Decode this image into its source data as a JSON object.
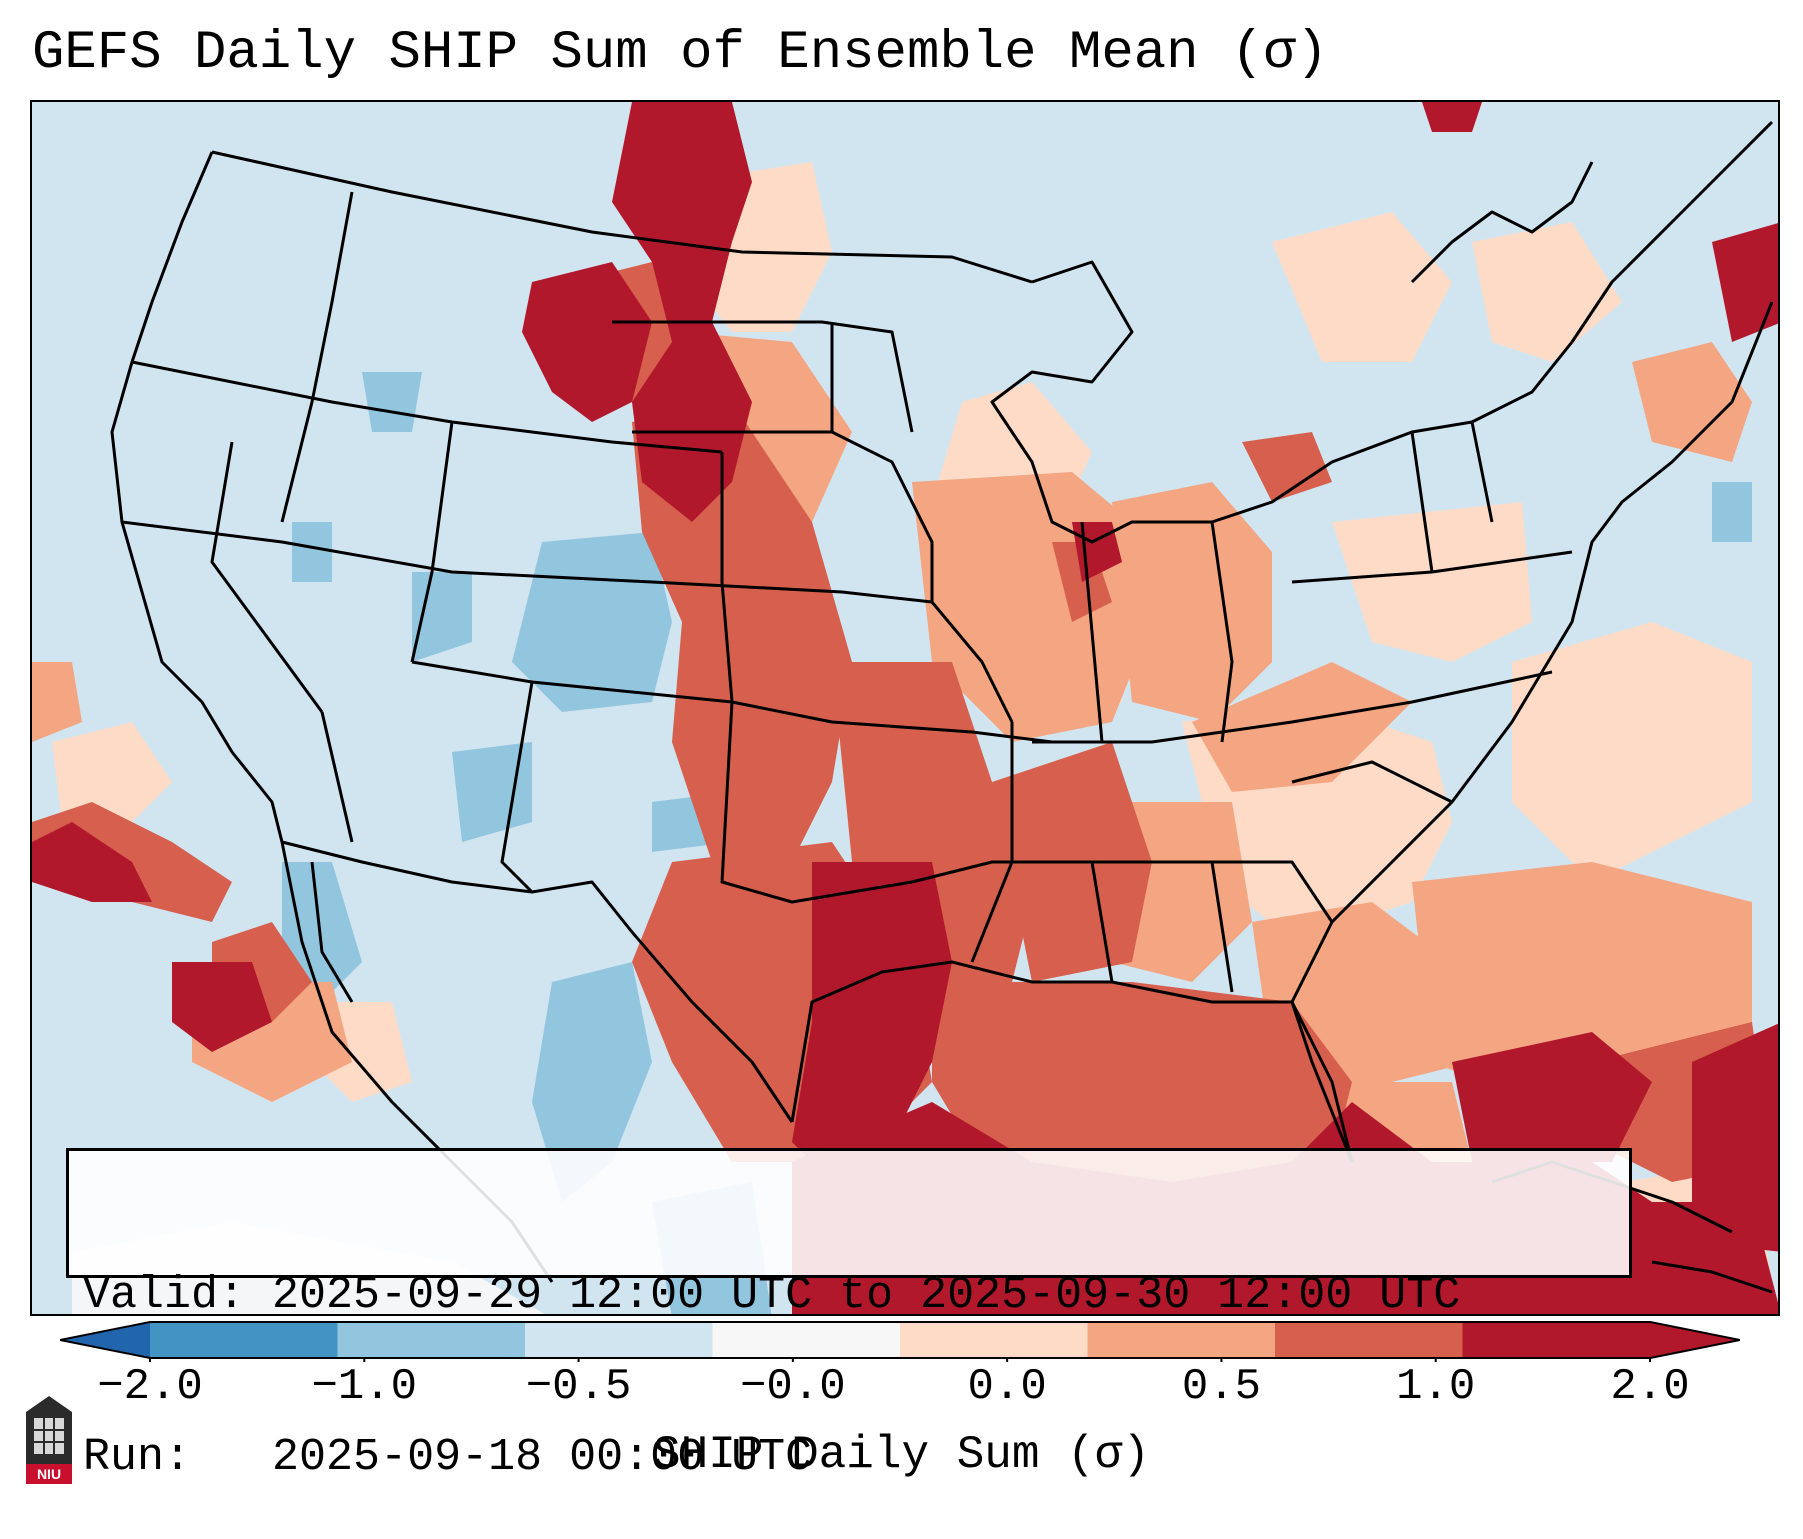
{
  "title": "GEFS Daily SHIP Sum of Ensemble Mean (σ)",
  "info": {
    "valid_label": "Valid:",
    "valid_value": "2025-09-29 12:00 UTC to 2025-09-30 12:00 UTC",
    "run_label": "Run:",
    "run_value": "2025-09-18 00:00 UTC"
  },
  "colorbar": {
    "label": "SHIP Daily Sum (σ)",
    "ticks": [
      "−2.0",
      "−1.0",
      "−0.5",
      "−0.0",
      "0.0",
      "0.5",
      "1.0",
      "2.0"
    ],
    "colors": [
      "#4393c3",
      "#92c5de",
      "#d1e5f0",
      "#f7f7f7",
      "#fddbc7",
      "#f4a582",
      "#d6604d",
      "#b2182b"
    ],
    "extend_low_color": "#2166ac",
    "extend_high_color": "#b2182b"
  },
  "colors": {
    "very_low": "#92c5de",
    "low": "#d1e5f0",
    "near_zero": "#f7f7f7",
    "slight_high": "#fddbc7",
    "moderate_high": "#f4a582",
    "high": "#d6604d",
    "very_high": "#b2182b"
  },
  "logo": {
    "text": "NIU",
    "icon": "niu-logo-icon"
  }
}
